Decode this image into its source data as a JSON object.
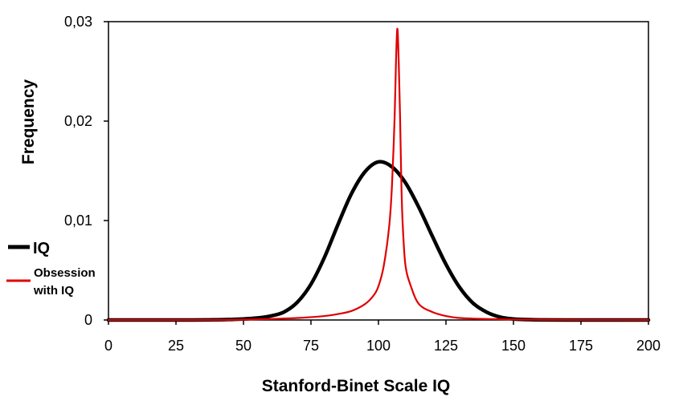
{
  "chart_data": {
    "type": "line",
    "xlabel": "Stanford-Binet Scale IQ",
    "ylabel": "Frequency",
    "xlim": [
      0,
      200
    ],
    "ylim": [
      0,
      0.03
    ],
    "x_ticks": [
      0,
      25,
      50,
      75,
      100,
      125,
      150,
      175,
      200
    ],
    "x_tick_labels": [
      "0",
      "25",
      "50",
      "75",
      "100",
      "125",
      "150",
      "175",
      "200"
    ],
    "y_ticks": [
      0,
      0.01,
      0.02,
      0.03
    ],
    "y_tick_labels": [
      "0",
      "0,01",
      "0,02",
      "0,03"
    ],
    "grid": false,
    "legend_position": "left, outside plot area",
    "series": [
      {
        "name": "IQ",
        "color": "#000000",
        "x": [
          0,
          30,
          40,
          45,
          50,
          55,
          60,
          65,
          70,
          75,
          80,
          85,
          90,
          95,
          100,
          105,
          110,
          115,
          120,
          125,
          130,
          135,
          140,
          145,
          150,
          155,
          160,
          170,
          200
        ],
        "y": [
          0,
          0,
          2e-05,
          5e-05,
          0.0001,
          0.0002,
          0.0004,
          0.0008,
          0.0018,
          0.0036,
          0.0063,
          0.0096,
          0.0127,
          0.0149,
          0.0159,
          0.0154,
          0.0138,
          0.0113,
          0.0084,
          0.0056,
          0.0033,
          0.0017,
          0.0008,
          0.0003,
          0.0001,
          4e-05,
          1e-05,
          0,
          0
        ]
      },
      {
        "name": "Obsession with IQ",
        "color": "#e00000",
        "x": [
          0,
          40,
          60,
          70,
          80,
          85,
          90,
          95,
          98,
          100,
          102,
          104,
          105,
          106,
          106.5,
          107,
          107.5,
          108,
          108.5,
          109,
          110,
          112,
          115,
          120,
          125,
          130,
          140,
          160,
          200
        ],
        "y": [
          0,
          0,
          0.0001,
          0.0002,
          0.0004,
          0.0006,
          0.0009,
          0.0016,
          0.0024,
          0.0034,
          0.0055,
          0.0095,
          0.0135,
          0.0205,
          0.026,
          0.0293,
          0.026,
          0.0205,
          0.0135,
          0.0095,
          0.0055,
          0.0034,
          0.0016,
          0.0008,
          0.0004,
          0.0002,
          0.0001,
          2e-05,
          0
        ]
      }
    ]
  }
}
